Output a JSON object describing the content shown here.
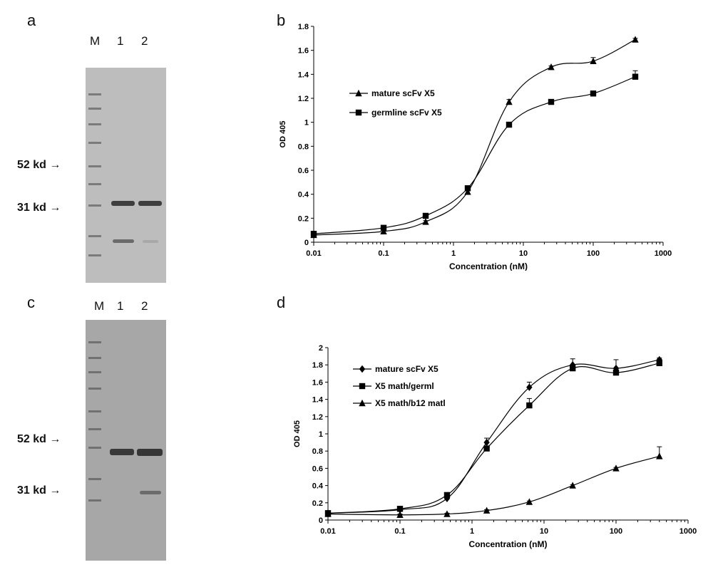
{
  "panel_a": {
    "letter": "a",
    "lanes": [
      "M",
      "1",
      "2"
    ],
    "markers": [
      {
        "label": "52 kd",
        "arrow": "→"
      },
      {
        "label": "31 kd",
        "arrow": "→"
      }
    ]
  },
  "panel_c": {
    "letter": "c",
    "lanes": [
      "M",
      "1",
      "2"
    ],
    "markers": [
      {
        "label": "52 kd",
        "arrow": "→"
      },
      {
        "label": "31 kd",
        "arrow": "→"
      }
    ]
  },
  "chart_data": [
    {
      "panel": "b",
      "type": "line",
      "xscale": "log",
      "xlim": [
        0.01,
        1000
      ],
      "xticks": [
        "0.01",
        "0.1",
        "1",
        "10",
        "100",
        "1000"
      ],
      "ylim": [
        0,
        1.8
      ],
      "yticks": [
        "0",
        "0.2",
        "0.4",
        "0.6",
        "0.8",
        "1",
        "1.2",
        "1.4",
        "1.6",
        "1.8"
      ],
      "xlabel": "Concentration (nM)",
      "ylabel": "OD 405",
      "legend_position": "upper-left",
      "series": [
        {
          "name": "mature scFv X5",
          "marker": "triangle",
          "x": [
            0.01,
            0.1,
            0.4,
            1.6,
            6.25,
            25,
            100,
            400
          ],
          "y": [
            0.06,
            0.09,
            0.17,
            0.42,
            1.17,
            1.46,
            1.51,
            1.69
          ],
          "err": [
            0.01,
            0.01,
            0.01,
            0.02,
            0.02,
            0.01,
            0.03,
            0.01
          ]
        },
        {
          "name": "germline scFv X5",
          "marker": "square",
          "x": [
            0.01,
            0.1,
            0.4,
            1.6,
            6.25,
            25,
            100,
            400
          ],
          "y": [
            0.07,
            0.12,
            0.22,
            0.45,
            0.98,
            1.17,
            1.24,
            1.38
          ],
          "err": [
            0.01,
            0.01,
            0.01,
            0.01,
            0.01,
            0.01,
            0.01,
            0.05
          ]
        }
      ]
    },
    {
      "panel": "d",
      "type": "line",
      "xscale": "log",
      "xlim": [
        0.01,
        1000
      ],
      "xticks": [
        "0.01",
        "0.1",
        "1",
        "10",
        "100",
        "1000"
      ],
      "ylim": [
        0,
        2
      ],
      "yticks": [
        "0",
        "0.2",
        "0.4",
        "0.6",
        "0.8",
        "1",
        "1.2",
        "1.4",
        "1.6",
        "1.8",
        "2"
      ],
      "xlabel": "Concentration (nM)",
      "ylabel": "OD 405",
      "legend_position": "upper-left",
      "series": [
        {
          "name": "mature scFv X5",
          "marker": "diamond",
          "x": [
            0.01,
            0.1,
            0.45,
            1.6,
            6.25,
            25,
            100,
            400
          ],
          "y": [
            0.08,
            0.12,
            0.25,
            0.9,
            1.54,
            1.8,
            1.76,
            1.86
          ],
          "err": [
            0.01,
            0.02,
            0.02,
            0.05,
            0.06,
            0.07,
            0.1,
            0.02
          ]
        },
        {
          "name": "X5 math/germl",
          "marker": "square",
          "x": [
            0.01,
            0.1,
            0.45,
            1.6,
            6.25,
            25,
            100,
            400
          ],
          "y": [
            0.08,
            0.13,
            0.29,
            0.83,
            1.33,
            1.76,
            1.71,
            1.82
          ],
          "err": [
            0.01,
            0.02,
            0.02,
            0.03,
            0.08,
            0.04,
            0.04,
            0.03
          ]
        },
        {
          "name": "X5 math/b12 matl",
          "marker": "triangle",
          "x": [
            0.01,
            0.1,
            0.45,
            1.6,
            6.25,
            25,
            100,
            400
          ],
          "y": [
            0.07,
            0.06,
            0.07,
            0.11,
            0.21,
            0.4,
            0.6,
            0.74
          ],
          "err": [
            0.01,
            0.01,
            0.01,
            0.01,
            0.01,
            0.01,
            0.01,
            0.11
          ]
        }
      ]
    }
  ]
}
